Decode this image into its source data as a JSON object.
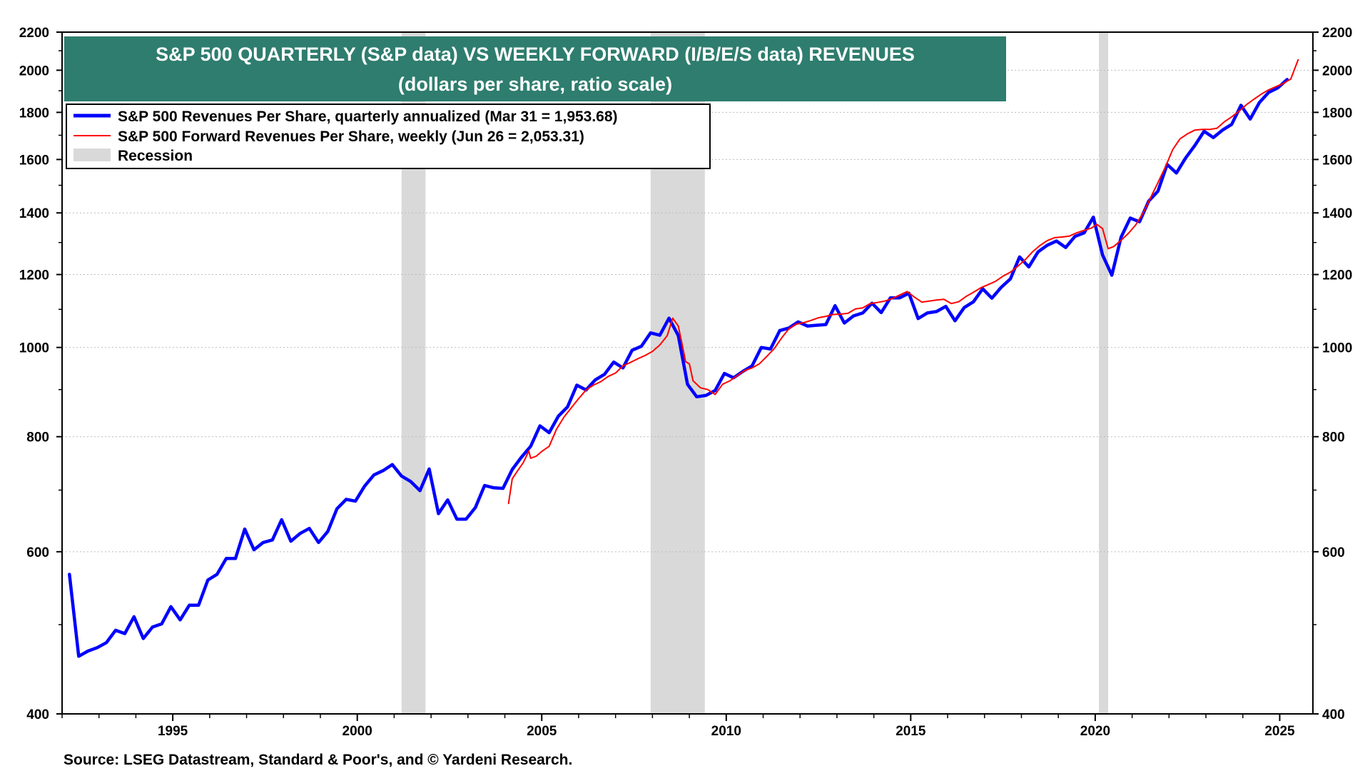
{
  "chart_data": {
    "type": "line",
    "title": "S&P 500 QUARTERLY (S&P data) VS WEEKLY FORWARD (I/B/E/S data) REVENUES",
    "subtitle": "(dollars per share, ratio scale)",
    "source": "Source: LSEG Datastream, Standard & Poor's, and © Yardeni Research.",
    "y_scale": "log",
    "ylim": [
      400,
      2200
    ],
    "xlim": [
      1992.0,
      2025.9
    ],
    "y_ticks": [
      {
        "value": 400,
        "label": "400"
      },
      {
        "value": 600,
        "label": "600"
      },
      {
        "value": 800,
        "label": "800"
      },
      {
        "value": 1000,
        "label": "1000"
      },
      {
        "value": 1200,
        "label": "1200"
      },
      {
        "value": 1400,
        "label": "1400"
      },
      {
        "value": 1600,
        "label": "1600"
      },
      {
        "value": 1800,
        "label": "1800"
      },
      {
        "value": 2000,
        "label": "2000"
      },
      {
        "value": 2200,
        "label": "2200"
      }
    ],
    "x_ticks": [
      {
        "value": 1995,
        "label": "1995"
      },
      {
        "value": 2000,
        "label": "2000"
      },
      {
        "value": 2005,
        "label": "2005"
      },
      {
        "value": 2010,
        "label": "2010"
      },
      {
        "value": 2015,
        "label": "2015"
      },
      {
        "value": 2020,
        "label": "2020"
      },
      {
        "value": 2025,
        "label": "2025"
      }
    ],
    "recessions": [
      {
        "start": 2001.2,
        "end": 2001.85
      },
      {
        "start": 2007.95,
        "end": 2009.42
      },
      {
        "start": 2020.1,
        "end": 2020.35
      }
    ],
    "legend": {
      "placement": "top-left",
      "entries": [
        {
          "label": "S&P 500 Revenues Per Share, quarterly annualized (Mar 31 = 1,953.68)",
          "color": "#0000ff",
          "kind": "line-thick"
        },
        {
          "label": "S&P 500 Forward Revenues Per Share, weekly (Jun 26 = 2,053.31)",
          "color": "#ff0000",
          "kind": "line-thin"
        },
        {
          "label": "Recession",
          "color": "#d9d9d9",
          "kind": "box"
        }
      ]
    },
    "colors": {
      "title_bg": "#2e7d6e",
      "quarterly": "#0000ff",
      "forward": "#ff0000",
      "recession": "#d9d9d9",
      "grid": "#bbbbbb"
    },
    "series": [
      {
        "name": "S&P 500 Revenues Per Share, quarterly annualized (Mar 31 = 1,953.68)",
        "points": [
          [
            1992.2,
            567
          ],
          [
            1992.45,
            462
          ],
          [
            1992.7,
            468
          ],
          [
            1992.95,
            472
          ],
          [
            1993.2,
            478
          ],
          [
            1993.45,
            493
          ],
          [
            1993.7,
            489
          ],
          [
            1993.95,
            510
          ],
          [
            1994.2,
            483
          ],
          [
            1994.45,
            497
          ],
          [
            1994.7,
            501
          ],
          [
            1994.95,
            523
          ],
          [
            1995.2,
            506
          ],
          [
            1995.45,
            525
          ],
          [
            1995.7,
            525
          ],
          [
            1995.95,
            559
          ],
          [
            1996.2,
            567
          ],
          [
            1996.45,
            590
          ],
          [
            1996.7,
            590
          ],
          [
            1996.95,
            635
          ],
          [
            1997.2,
            603
          ],
          [
            1997.45,
            614
          ],
          [
            1997.7,
            618
          ],
          [
            1997.95,
            650
          ],
          [
            1998.2,
            616
          ],
          [
            1998.45,
            628
          ],
          [
            1998.7,
            636
          ],
          [
            1998.95,
            614
          ],
          [
            1999.2,
            631
          ],
          [
            1999.45,
            668
          ],
          [
            1999.7,
            684
          ],
          [
            1999.95,
            681
          ],
          [
            2000.2,
            707
          ],
          [
            2000.45,
            727
          ],
          [
            2000.7,
            735
          ],
          [
            2000.95,
            746
          ],
          [
            2001.2,
            725
          ],
          [
            2001.45,
            715
          ],
          [
            2001.7,
            699
          ],
          [
            2001.95,
            738
          ],
          [
            2002.2,
            660
          ],
          [
            2002.45,
            683
          ],
          [
            2002.7,
            651
          ],
          [
            2002.95,
            651
          ],
          [
            2003.2,
            670
          ],
          [
            2003.45,
            708
          ],
          [
            2003.7,
            704
          ],
          [
            2003.95,
            703
          ],
          [
            2004.2,
            737
          ],
          [
            2004.45,
            760
          ],
          [
            2004.7,
            781
          ],
          [
            2004.95,
            822
          ],
          [
            2005.2,
            808
          ],
          [
            2005.45,
            842
          ],
          [
            2005.7,
            862
          ],
          [
            2005.95,
            910
          ],
          [
            2006.2,
            899
          ],
          [
            2006.45,
            922
          ],
          [
            2006.7,
            935
          ],
          [
            2006.95,
            964
          ],
          [
            2007.2,
            950
          ],
          [
            2007.45,
            993
          ],
          [
            2007.7,
            1003
          ],
          [
            2007.95,
            1037
          ],
          [
            2008.2,
            1031
          ],
          [
            2008.45,
            1076
          ],
          [
            2008.7,
            1030
          ],
          [
            2008.95,
            912
          ],
          [
            2009.2,
            884
          ],
          [
            2009.45,
            887
          ],
          [
            2009.7,
            898
          ],
          [
            2009.95,
            937
          ],
          [
            2010.2,
            927
          ],
          [
            2010.45,
            942
          ],
          [
            2010.7,
            955
          ],
          [
            2010.95,
            1000
          ],
          [
            2011.2,
            996
          ],
          [
            2011.45,
            1043
          ],
          [
            2011.7,
            1050
          ],
          [
            2011.95,
            1066
          ],
          [
            2012.2,
            1055
          ],
          [
            2012.45,
            1057
          ],
          [
            2012.7,
            1059
          ],
          [
            2012.95,
            1110
          ],
          [
            2013.2,
            1063
          ],
          [
            2013.45,
            1082
          ],
          [
            2013.7,
            1090
          ],
          [
            2013.95,
            1117
          ],
          [
            2014.2,
            1091
          ],
          [
            2014.45,
            1132
          ],
          [
            2014.7,
            1132
          ],
          [
            2014.95,
            1145
          ],
          [
            2015.2,
            1075
          ],
          [
            2015.45,
            1090
          ],
          [
            2015.7,
            1094
          ],
          [
            2015.95,
            1108
          ],
          [
            2016.2,
            1069
          ],
          [
            2016.45,
            1105
          ],
          [
            2016.7,
            1121
          ],
          [
            2016.95,
            1158
          ],
          [
            2017.2,
            1131
          ],
          [
            2017.45,
            1162
          ],
          [
            2017.7,
            1187
          ],
          [
            2017.95,
            1254
          ],
          [
            2018.2,
            1223
          ],
          [
            2018.45,
            1270
          ],
          [
            2018.7,
            1291
          ],
          [
            2018.95,
            1305
          ],
          [
            2019.2,
            1284
          ],
          [
            2019.45,
            1320
          ],
          [
            2019.7,
            1332
          ],
          [
            2019.95,
            1385
          ],
          [
            2020.2,
            1260
          ],
          [
            2020.45,
            1198
          ],
          [
            2020.7,
            1317
          ],
          [
            2020.95,
            1382
          ],
          [
            2021.2,
            1369
          ],
          [
            2021.45,
            1442
          ],
          [
            2021.7,
            1478
          ],
          [
            2021.95,
            1580
          ],
          [
            2022.2,
            1547
          ],
          [
            2022.45,
            1606
          ],
          [
            2022.7,
            1657
          ],
          [
            2022.95,
            1717
          ],
          [
            2023.2,
            1690
          ],
          [
            2023.45,
            1722
          ],
          [
            2023.7,
            1747
          ],
          [
            2023.95,
            1832
          ],
          [
            2024.2,
            1770
          ],
          [
            2024.45,
            1845
          ],
          [
            2024.7,
            1892
          ],
          [
            2024.95,
            1914
          ],
          [
            2025.2,
            1954
          ]
        ]
      },
      {
        "name": "S&P 500 Forward Revenues Per Share, weekly (Jun 26 = 2,053.31)",
        "points": [
          [
            2004.1,
            677
          ],
          [
            2004.2,
            720
          ],
          [
            2004.35,
            735
          ],
          [
            2004.5,
            750
          ],
          [
            2004.65,
            772
          ],
          [
            2004.7,
            758
          ],
          [
            2004.85,
            762
          ],
          [
            2005.0,
            771
          ],
          [
            2005.2,
            781
          ],
          [
            2005.4,
            815
          ],
          [
            2005.6,
            840
          ],
          [
            2005.8,
            860
          ],
          [
            2006.0,
            880
          ],
          [
            2006.2,
            899
          ],
          [
            2006.4,
            910
          ],
          [
            2006.6,
            918
          ],
          [
            2006.8,
            930
          ],
          [
            2007.0,
            938
          ],
          [
            2007.2,
            955
          ],
          [
            2007.4,
            963
          ],
          [
            2007.6,
            972
          ],
          [
            2007.8,
            980
          ],
          [
            2008.0,
            990
          ],
          [
            2008.2,
            1006
          ],
          [
            2008.4,
            1030
          ],
          [
            2008.55,
            1076
          ],
          [
            2008.7,
            1055
          ],
          [
            2008.8,
            1010
          ],
          [
            2008.9,
            965
          ],
          [
            2009.0,
            960
          ],
          [
            2009.1,
            920
          ],
          [
            2009.3,
            904
          ],
          [
            2009.5,
            900
          ],
          [
            2009.7,
            889
          ],
          [
            2009.9,
            912
          ],
          [
            2010.1,
            920
          ],
          [
            2010.3,
            932
          ],
          [
            2010.5,
            944
          ],
          [
            2010.7,
            950
          ],
          [
            2010.9,
            960
          ],
          [
            2011.1,
            978
          ],
          [
            2011.3,
            997
          ],
          [
            2011.5,
            1024
          ],
          [
            2011.7,
            1048
          ],
          [
            2011.9,
            1060
          ],
          [
            2012.1,
            1064
          ],
          [
            2012.3,
            1070
          ],
          [
            2012.5,
            1077
          ],
          [
            2012.7,
            1081
          ],
          [
            2012.9,
            1086
          ],
          [
            2013.1,
            1087
          ],
          [
            2013.3,
            1089
          ],
          [
            2013.5,
            1101
          ],
          [
            2013.7,
            1104
          ],
          [
            2013.9,
            1116
          ],
          [
            2014.1,
            1119
          ],
          [
            2014.3,
            1123
          ],
          [
            2014.5,
            1130
          ],
          [
            2014.7,
            1140
          ],
          [
            2014.9,
            1150
          ],
          [
            2015.1,
            1134
          ],
          [
            2015.3,
            1120
          ],
          [
            2015.5,
            1123
          ],
          [
            2015.7,
            1126
          ],
          [
            2015.9,
            1128
          ],
          [
            2016.1,
            1116
          ],
          [
            2016.3,
            1121
          ],
          [
            2016.5,
            1136
          ],
          [
            2016.7,
            1148
          ],
          [
            2016.9,
            1161
          ],
          [
            2017.1,
            1170
          ],
          [
            2017.3,
            1180
          ],
          [
            2017.5,
            1195
          ],
          [
            2017.7,
            1207
          ],
          [
            2017.9,
            1225
          ],
          [
            2018.1,
            1245
          ],
          [
            2018.3,
            1270
          ],
          [
            2018.5,
            1290
          ],
          [
            2018.7,
            1306
          ],
          [
            2018.9,
            1316
          ],
          [
            2019.1,
            1318
          ],
          [
            2019.3,
            1321
          ],
          [
            2019.5,
            1332
          ],
          [
            2019.7,
            1340
          ],
          [
            2019.9,
            1348
          ],
          [
            2020.05,
            1360
          ],
          [
            2020.2,
            1346
          ],
          [
            2020.35,
            1280
          ],
          [
            2020.5,
            1287
          ],
          [
            2020.7,
            1307
          ],
          [
            2020.9,
            1330
          ],
          [
            2021.1,
            1359
          ],
          [
            2021.3,
            1400
          ],
          [
            2021.5,
            1454
          ],
          [
            2021.7,
            1510
          ],
          [
            2021.9,
            1570
          ],
          [
            2022.1,
            1640
          ],
          [
            2022.3,
            1685
          ],
          [
            2022.5,
            1706
          ],
          [
            2022.7,
            1722
          ],
          [
            2022.9,
            1725
          ],
          [
            2023.1,
            1725
          ],
          [
            2023.3,
            1730
          ],
          [
            2023.5,
            1758
          ],
          [
            2023.7,
            1780
          ],
          [
            2023.9,
            1806
          ],
          [
            2024.1,
            1835
          ],
          [
            2024.3,
            1860
          ],
          [
            2024.5,
            1884
          ],
          [
            2024.7,
            1904
          ],
          [
            2024.9,
            1920
          ],
          [
            2025.1,
            1935
          ],
          [
            2025.3,
            1957
          ],
          [
            2025.5,
            2053
          ]
        ]
      }
    ]
  }
}
